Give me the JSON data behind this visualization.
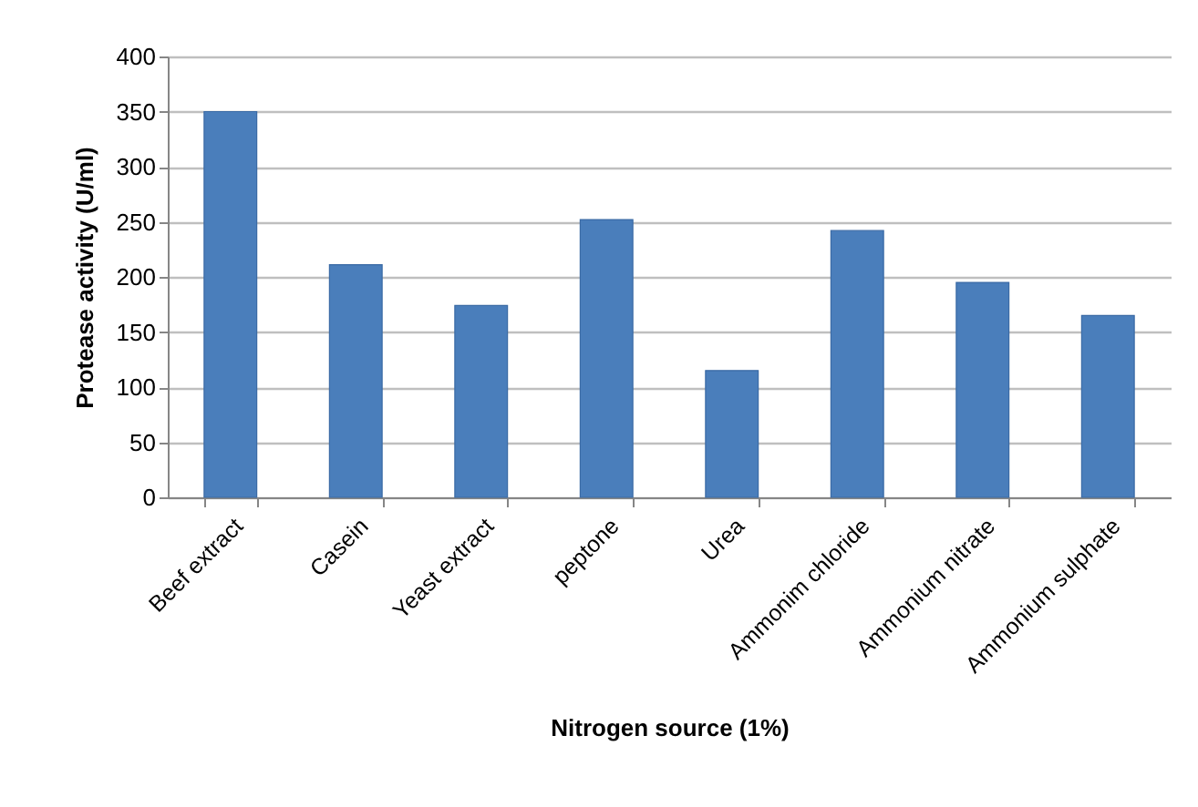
{
  "chart_data": {
    "type": "bar",
    "xlabel": "Nitrogen source (1%)",
    "ylabel": "Protease activity (U/ml)",
    "categories": [
      "Beef extract",
      "Casein",
      "Yeast extract",
      "peptone",
      "Urea",
      "Ammonim chloride",
      "Ammonium nitrate",
      "Ammonium sulphate"
    ],
    "values": [
      350,
      211,
      174,
      252,
      115,
      242,
      195,
      165
    ],
    "color": "#4a7ebb",
    "ylim": [
      0,
      400
    ],
    "yticks": [
      0,
      50,
      100,
      150,
      200,
      250,
      300,
      350,
      400
    ],
    "grid": "y"
  }
}
